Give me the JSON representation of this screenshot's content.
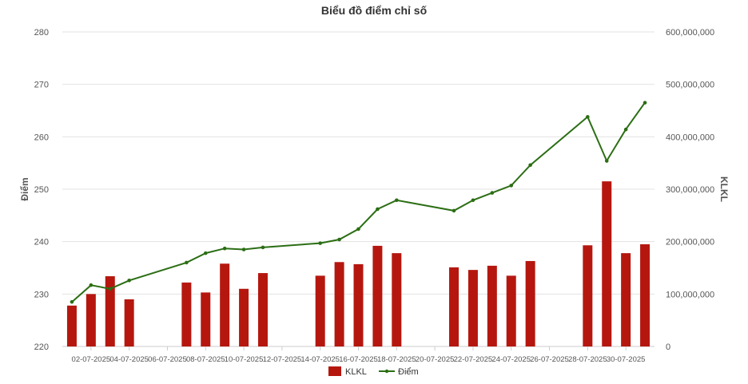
{
  "chart_data": {
    "type": "bar+line",
    "title": "Biểu đồ điểm chỉ số",
    "y_left_label": "Điểm",
    "y_right_label": "KLKL",
    "y_left_ticks": [
      "220",
      "230",
      "240",
      "250",
      "260",
      "270",
      "280"
    ],
    "y_left_range": [
      220,
      280
    ],
    "y_right_ticks": [
      "0",
      "100,000,000",
      "200,000,000",
      "300,000,000",
      "400,000,000",
      "500,000,000",
      "600,000,000"
    ],
    "y_right_range": [
      0,
      600000000
    ],
    "x_range": [
      "01-07-2025",
      "31-07-2025"
    ],
    "x_tick_labels": [
      "02-07-2025",
      "04-07-2025",
      "06-07-2025",
      "08-07-2025",
      "10-07-2025",
      "12-07-2025",
      "14-07-2025",
      "16-07-2025",
      "18-07-2025",
      "20-07-2025",
      "22-07-2025",
      "24-07-2025",
      "26-07-2025",
      "28-07-2025",
      "30-07-2025"
    ],
    "series": [
      {
        "name": "KLKL",
        "type": "bar",
        "axis": "right",
        "color": "#b5170f",
        "points": [
          {
            "x": "01-07-2025",
            "y": 78000000
          },
          {
            "x": "02-07-2025",
            "y": 100000000
          },
          {
            "x": "03-07-2025",
            "y": 134000000
          },
          {
            "x": "04-07-2025",
            "y": 90000000
          },
          {
            "x": "07-07-2025",
            "y": 122000000
          },
          {
            "x": "08-07-2025",
            "y": 103000000
          },
          {
            "x": "09-07-2025",
            "y": 158000000
          },
          {
            "x": "10-07-2025",
            "y": 110000000
          },
          {
            "x": "11-07-2025",
            "y": 140000000
          },
          {
            "x": "14-07-2025",
            "y": 135000000
          },
          {
            "x": "15-07-2025",
            "y": 161000000
          },
          {
            "x": "16-07-2025",
            "y": 157000000
          },
          {
            "x": "17-07-2025",
            "y": 192000000
          },
          {
            "x": "18-07-2025",
            "y": 178000000
          },
          {
            "x": "21-07-2025",
            "y": 151000000
          },
          {
            "x": "22-07-2025",
            "y": 146000000
          },
          {
            "x": "23-07-2025",
            "y": 154000000
          },
          {
            "x": "24-07-2025",
            "y": 135000000
          },
          {
            "x": "25-07-2025",
            "y": 163000000
          },
          {
            "x": "28-07-2025",
            "y": 193000000
          },
          {
            "x": "29-07-2025",
            "y": 315000000
          },
          {
            "x": "30-07-2025",
            "y": 178000000
          },
          {
            "x": "31-07-2025",
            "y": 195000000
          }
        ]
      },
      {
        "name": "Điểm",
        "type": "line",
        "axis": "left",
        "color": "#2b6e14",
        "points": [
          {
            "x": "01-07-2025",
            "y": 228.5
          },
          {
            "x": "02-07-2025",
            "y": 231.7
          },
          {
            "x": "03-07-2025",
            "y": 231.0
          },
          {
            "x": "04-07-2025",
            "y": 232.6
          },
          {
            "x": "07-07-2025",
            "y": 236.0
          },
          {
            "x": "08-07-2025",
            "y": 237.8
          },
          {
            "x": "09-07-2025",
            "y": 238.7
          },
          {
            "x": "10-07-2025",
            "y": 238.5
          },
          {
            "x": "11-07-2025",
            "y": 238.9
          },
          {
            "x": "14-07-2025",
            "y": 239.7
          },
          {
            "x": "15-07-2025",
            "y": 240.4
          },
          {
            "x": "16-07-2025",
            "y": 242.4
          },
          {
            "x": "17-07-2025",
            "y": 246.2
          },
          {
            "x": "18-07-2025",
            "y": 247.9
          },
          {
            "x": "21-07-2025",
            "y": 245.9
          },
          {
            "x": "22-07-2025",
            "y": 247.9
          },
          {
            "x": "23-07-2025",
            "y": 249.3
          },
          {
            "x": "24-07-2025",
            "y": 250.7
          },
          {
            "x": "25-07-2025",
            "y": 254.6
          },
          {
            "x": "28-07-2025",
            "y": 263.8
          },
          {
            "x": "29-07-2025",
            "y": 255.4
          },
          {
            "x": "30-07-2025",
            "y": 261.4
          },
          {
            "x": "31-07-2025",
            "y": 266.5
          }
        ]
      }
    ],
    "grid": true,
    "legend_position": "bottom-center",
    "colors": {
      "bar": "#b5170f",
      "line": "#2b6e14",
      "grid": "#e3e3e3"
    }
  }
}
